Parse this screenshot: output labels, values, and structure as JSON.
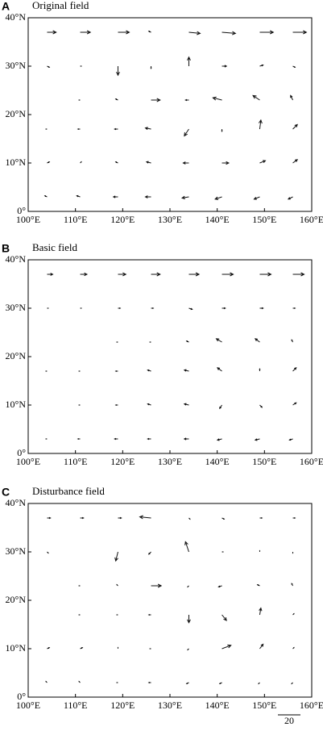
{
  "chart_data": [
    {
      "type": "quiver",
      "panel": "A",
      "title": "Original field",
      "lon": [
        104,
        111,
        119,
        126,
        134,
        141,
        149,
        156
      ],
      "lat": [
        3,
        10,
        17,
        23,
        30,
        37
      ],
      "u": [
        [
          -2,
          -3,
          -4,
          -5,
          -6,
          -6,
          -5,
          -4
        ],
        [
          2,
          1,
          -2,
          -4,
          -5,
          6,
          5,
          4
        ],
        [
          -1,
          -2,
          -3,
          -5,
          -4,
          0,
          1,
          4
        ],
        [
          0,
          -1,
          -2,
          8,
          -3,
          -8,
          -6,
          -2
        ],
        [
          2,
          1,
          0,
          0,
          0,
          4,
          3,
          2
        ],
        [
          8,
          9,
          10,
          -2,
          10,
          12,
          12,
          12
        ]
      ],
      "v": [
        [
          1,
          1,
          0,
          0,
          -1,
          -2,
          -2,
          -2
        ],
        [
          1,
          1,
          1,
          1,
          0,
          0,
          2,
          3
        ],
        [
          0,
          0,
          0,
          1,
          -6,
          -2,
          8,
          4
        ],
        [
          0,
          0,
          1,
          0,
          0,
          2,
          4,
          4
        ],
        [
          -1,
          0,
          -8,
          -2,
          8,
          0,
          1,
          -1
        ],
        [
          0,
          0,
          0,
          1,
          -1,
          -1,
          0,
          0
        ]
      ],
      "xlim": [
        100,
        160
      ],
      "ylim": [
        0,
        40
      ],
      "xticks": [
        {
          "value": 100,
          "label": "100°E"
        },
        {
          "value": 110,
          "label": "110°E"
        },
        {
          "value": 120,
          "label": "120°E"
        },
        {
          "value": 130,
          "label": "130°E"
        },
        {
          "value": 140,
          "label": "140°E"
        },
        {
          "value": 150,
          "label": "150°E"
        },
        {
          "value": 160,
          "label": "160°E"
        }
      ],
      "yticks": [
        {
          "value": 0,
          "label": "0°"
        },
        {
          "value": 10,
          "label": "10°N"
        },
        {
          "value": 20,
          "label": "20°N"
        },
        {
          "value": 30,
          "label": "30°N"
        },
        {
          "value": 40,
          "label": "40°N"
        }
      ]
    },
    {
      "type": "quiver",
      "panel": "B",
      "title": "Basic field",
      "lon": [
        104,
        111,
        119,
        126,
        134,
        141,
        149,
        156
      ],
      "lat": [
        3,
        10,
        17,
        23,
        30,
        37
      ],
      "u": [
        [
          -1,
          -2,
          -3,
          -3,
          -4,
          -4,
          -4,
          -3
        ],
        [
          0,
          -1,
          -2,
          -3,
          -4,
          -2,
          2,
          3
        ],
        [
          -1,
          -1,
          -2,
          -3,
          -4,
          -4,
          0,
          3
        ],
        [
          0,
          0,
          -1,
          -1,
          -2,
          -5,
          -4,
          -1
        ],
        [
          1,
          1,
          2,
          2,
          3,
          3,
          3,
          2
        ],
        [
          5,
          6,
          7,
          8,
          9,
          10,
          10,
          10
        ]
      ],
      "v": [
        [
          0,
          0,
          0,
          0,
          0,
          -1,
          -1,
          -1
        ],
        [
          0,
          0,
          0,
          1,
          1,
          -3,
          -2,
          2
        ],
        [
          0,
          0,
          0,
          1,
          1,
          3,
          2,
          3
        ],
        [
          0,
          0,
          0,
          0,
          1,
          3,
          3,
          2
        ],
        [
          0,
          0,
          0,
          0,
          -1,
          0,
          0,
          0
        ],
        [
          0,
          0,
          0,
          0,
          0,
          0,
          0,
          0
        ]
      ],
      "xlim": [
        100,
        160
      ],
      "ylim": [
        0,
        40
      ],
      "xticks": [
        {
          "value": 100,
          "label": "100°E"
        },
        {
          "value": 110,
          "label": "110°E"
        },
        {
          "value": 120,
          "label": "120°E"
        },
        {
          "value": 130,
          "label": "130°E"
        },
        {
          "value": 140,
          "label": "140°E"
        },
        {
          "value": 150,
          "label": "150°E"
        },
        {
          "value": 160,
          "label": "160°E"
        }
      ],
      "yticks": [
        {
          "value": 0,
          "label": "0°"
        },
        {
          "value": 10,
          "label": "10°N"
        },
        {
          "value": 20,
          "label": "20°N"
        },
        {
          "value": 30,
          "label": "30°N"
        },
        {
          "value": 40,
          "label": "40°N"
        }
      ]
    },
    {
      "type": "quiver",
      "panel": "C",
      "title": "Disturbance field",
      "lon": [
        104,
        111,
        119,
        126,
        134,
        141,
        149,
        156
      ],
      "lat": [
        3,
        10,
        17,
        23,
        30,
        37
      ],
      "u": [
        [
          -1,
          -1,
          -1,
          -2,
          -2,
          -2,
          -1,
          -1
        ],
        [
          2,
          2,
          0,
          -1,
          -1,
          8,
          3,
          1
        ],
        [
          0,
          -1,
          -1,
          -2,
          0,
          4,
          1,
          1
        ],
        [
          0,
          -1,
          -1,
          9,
          -1,
          -3,
          -2,
          -1
        ],
        [
          1,
          0,
          -2,
          -2,
          -3,
          1,
          0,
          0
        ],
        [
          3,
          3,
          3,
          -10,
          1,
          2,
          2,
          2
        ]
      ],
      "v": [
        [
          1,
          1,
          0,
          0,
          -1,
          -1,
          -1,
          -1
        ],
        [
          1,
          1,
          1,
          0,
          -1,
          3,
          4,
          1
        ],
        [
          0,
          0,
          0,
          0,
          -7,
          -5,
          6,
          1
        ],
        [
          0,
          0,
          1,
          0,
          -1,
          -1,
          1,
          2
        ],
        [
          -1,
          0,
          -8,
          -2,
          9,
          0,
          1,
          -1
        ],
        [
          0,
          0,
          0,
          1,
          -1,
          -1,
          0,
          0
        ]
      ],
      "xlim": [
        100,
        160
      ],
      "ylim": [
        0,
        40
      ],
      "xticks": [
        {
          "value": 100,
          "label": "100°E"
        },
        {
          "value": 110,
          "label": "110°E"
        },
        {
          "value": 120,
          "label": "120°E"
        },
        {
          "value": 130,
          "label": "130°E"
        },
        {
          "value": 140,
          "label": "140°E"
        },
        {
          "value": 150,
          "label": "150°E"
        },
        {
          "value": 160,
          "label": "160°E"
        }
      ],
      "yticks": [
        {
          "value": 0,
          "label": "0°"
        },
        {
          "value": 10,
          "label": "10°N"
        },
        {
          "value": 20,
          "label": "20°N"
        },
        {
          "value": 30,
          "label": "30°N"
        },
        {
          "value": 40,
          "label": "40°N"
        }
      ],
      "reference_vector": 20
    }
  ]
}
